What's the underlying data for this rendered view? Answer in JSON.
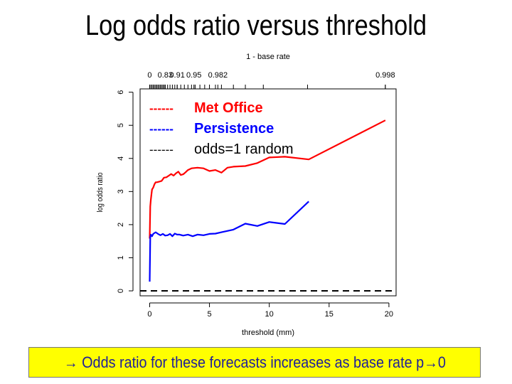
{
  "slide": {
    "title": "Log odds ratio versus threshold",
    "caption_prefix": "→ ",
    "caption_text": "Odds ratio for these forecasts increases as base rate p",
    "caption_suffix": "→0",
    "caption_color": "#1f1f99",
    "caption_background": "#ffff00"
  },
  "chart_data": {
    "type": "line",
    "xlabel": "threshold (mm)",
    "ylabel": "log odds ratio",
    "xlim": [
      -0.8,
      20.6
    ],
    "ylim": [
      -0.15,
      6.1
    ],
    "x_ticks": [
      0,
      5,
      10,
      15,
      20
    ],
    "y_ticks": [
      0,
      1,
      2,
      3,
      4,
      5,
      6
    ],
    "top_axis": {
      "label": "1 - base rate",
      "ticks": [
        {
          "x": 0,
          "label": "0"
        },
        {
          "x": 1.3,
          "label": "0.83"
        },
        {
          "x": 2.3,
          "label": "0.91"
        },
        {
          "x": 3.7,
          "label": "0.95"
        },
        {
          "x": 5.7,
          "label": "0.982"
        },
        {
          "x": 19.7,
          "label": "0.998"
        }
      ],
      "minor_ticks": [
        0.0,
        0.1,
        0.2,
        0.3,
        0.4,
        0.5,
        0.6,
        0.7,
        0.8,
        0.9,
        1.0,
        1.1,
        1.2,
        1.3,
        1.5,
        1.7,
        1.9,
        2.1,
        2.3,
        2.6,
        2.9,
        3.2,
        3.5,
        3.8,
        4.2,
        4.6,
        5.0,
        5.5,
        6.0,
        7.0,
        8.0,
        9.5,
        13.2,
        19.7
      ]
    },
    "grid": false,
    "legend_position": "top-left",
    "series": [
      {
        "name": "Met Office",
        "legend_dash": "------",
        "color": "#ff0000",
        "bold": true,
        "x": [
          0,
          0.05,
          0.1,
          0.15,
          0.2,
          0.3,
          0.4,
          0.5,
          0.6,
          0.8,
          1.0,
          1.2,
          1.4,
          1.6,
          1.8,
          2.0,
          2.2,
          2.4,
          2.6,
          2.8,
          3.0,
          3.2,
          3.5,
          4.0,
          4.5,
          5.0,
          5.5,
          6.0,
          6.5,
          7.0,
          8.0,
          9.0,
          10.0,
          11.3,
          13.3,
          19.7
        ],
        "y": [
          1.58,
          2.55,
          2.75,
          2.92,
          3.06,
          3.12,
          3.22,
          3.28,
          3.28,
          3.3,
          3.32,
          3.42,
          3.43,
          3.48,
          3.53,
          3.48,
          3.55,
          3.6,
          3.5,
          3.52,
          3.58,
          3.65,
          3.7,
          3.72,
          3.7,
          3.62,
          3.65,
          3.57,
          3.72,
          3.75,
          3.77,
          3.86,
          4.03,
          4.05,
          3.97,
          5.15
        ]
      },
      {
        "name": "Persistence",
        "legend_dash": "------",
        "color": "#0000ff",
        "bold": true,
        "x": [
          0,
          0.05,
          0.1,
          0.2,
          0.3,
          0.5,
          0.7,
          0.9,
          1.1,
          1.3,
          1.5,
          1.7,
          1.9,
          2.1,
          2.3,
          2.5,
          2.8,
          3.2,
          3.6,
          4.0,
          4.5,
          5.0,
          5.5,
          6.0,
          7.0,
          8.0,
          9.0,
          10.0,
          11.3,
          13.3
        ],
        "y": [
          0.28,
          1.62,
          1.7,
          1.65,
          1.72,
          1.77,
          1.72,
          1.68,
          1.72,
          1.67,
          1.68,
          1.72,
          1.65,
          1.73,
          1.7,
          1.7,
          1.67,
          1.7,
          1.65,
          1.7,
          1.68,
          1.72,
          1.73,
          1.77,
          1.85,
          2.03,
          1.96,
          2.08,
          2.02,
          2.7
        ]
      },
      {
        "name": "odds=1 random",
        "legend_dash": "------",
        "color": "#000000",
        "bold": false,
        "dashed": true,
        "x": [
          -0.8,
          20.6
        ],
        "y": [
          0,
          0
        ]
      }
    ]
  }
}
